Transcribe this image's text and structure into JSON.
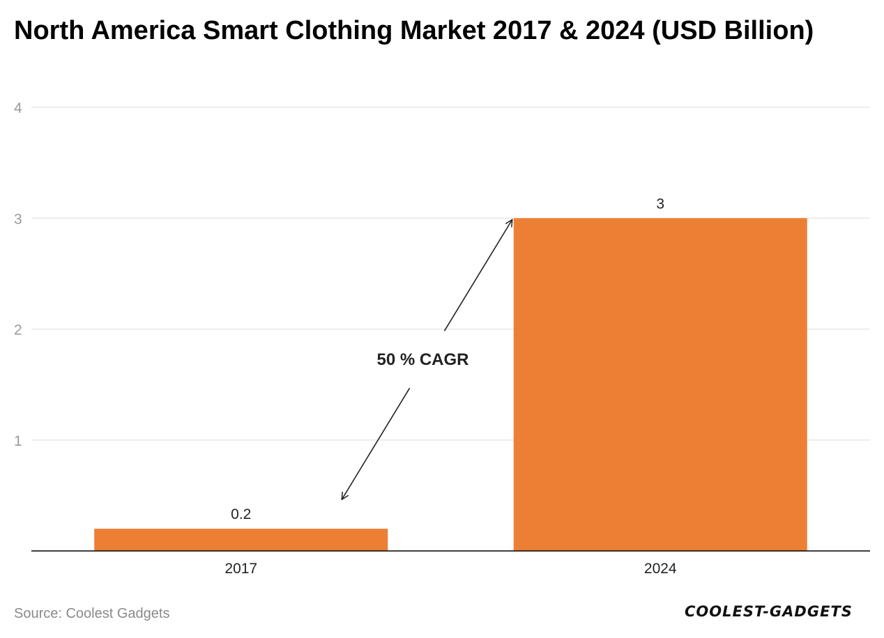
{
  "source": "Source: Coolest Gadgets",
  "brand": "COOLEST-GADGETS",
  "colors": {
    "bar": "#ED7F35",
    "grid": "#e3e3e3",
    "axis": "#000000",
    "tick_label": "#9a9a9a",
    "text": "#222222"
  },
  "chart_data": {
    "type": "bar",
    "title": "North America Smart Clothing Market 2017 & 2024 (USD Billion)",
    "categories": [
      "2017",
      "2024"
    ],
    "values": [
      0.2,
      3
    ],
    "data_labels": [
      "0.2",
      "3"
    ],
    "ylim": [
      0,
      4
    ],
    "yticks": [
      1,
      2,
      3,
      4
    ],
    "grid": true,
    "annotation": {
      "text": "50 % CAGR",
      "from_category": "2017",
      "to_category": "2024"
    }
  }
}
